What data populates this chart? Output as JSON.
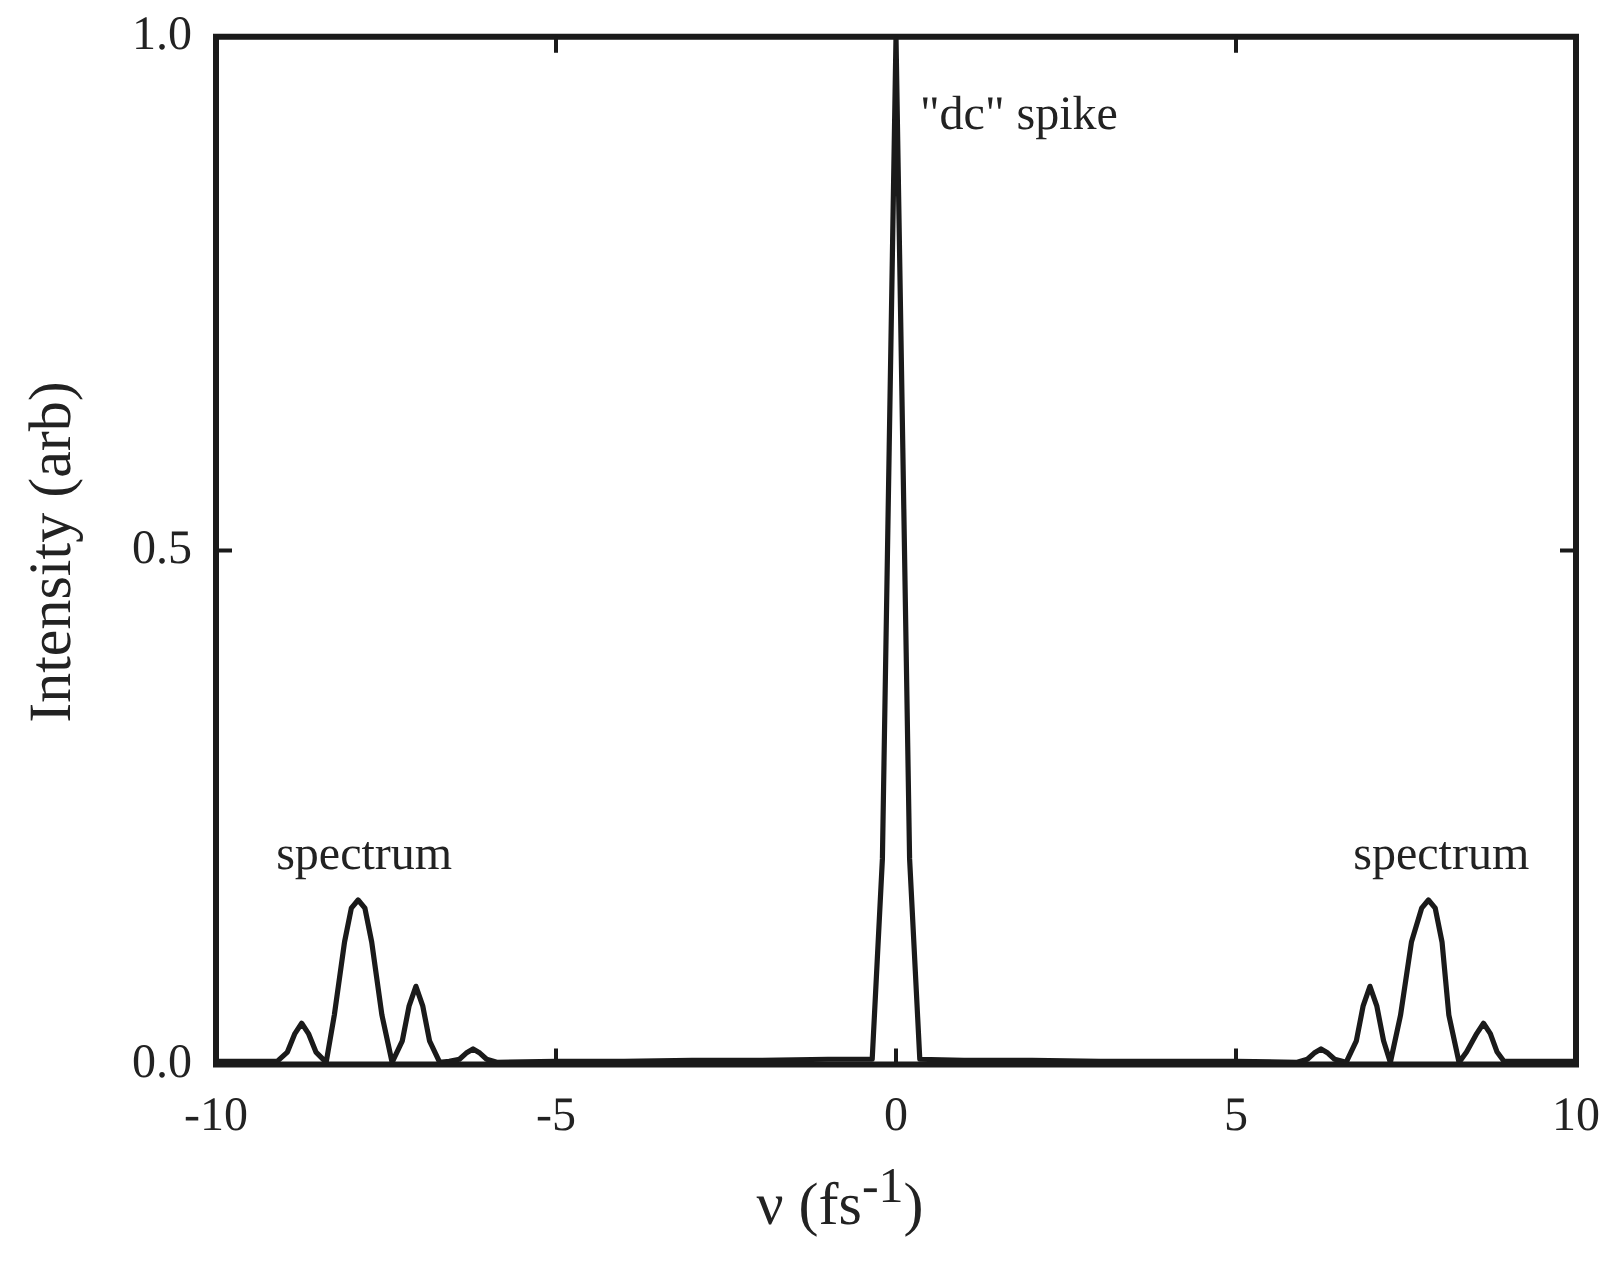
{
  "chart_data": {
    "type": "line",
    "xlabel": "ν (fs$^{-1}$)",
    "ylabel": "Intensity (arb)",
    "xlim": [
      -10,
      10
    ],
    "xticks": [
      -10,
      -5,
      0,
      5,
      10
    ],
    "ylim": [
      0,
      1
    ],
    "yticks": [
      {
        "value": 0,
        "label": "0.0"
      },
      {
        "value": 0.5,
        "label": "0.5"
      },
      {
        "value": 1,
        "label": "1.0"
      }
    ],
    "marker": "none",
    "line_style": "solid",
    "legend": false,
    "annotations": [
      {
        "text": "spectrum",
        "x": -7.91,
        "y": 0.16
      },
      {
        "text": "spectrum",
        "x": 7.93,
        "y": 0.16
      },
      {
        "text": "\"dc\" spike",
        "x": 0,
        "y": 1
      }
    ],
    "series": [
      {
        "color": "#1a1a1a",
        "x": [
          -10,
          -9.5,
          -9.1,
          -8.95,
          -8.84,
          -8.74,
          -8.64,
          -8.53,
          -8.38,
          -8.26,
          -8.11,
          -8.01,
          -7.91,
          -7.81,
          -7.71,
          -7.56,
          -7.41,
          -7.26,
          -7.16,
          -7.06,
          -6.96,
          -6.86,
          -6.71,
          -6.57,
          -6.42,
          -6.32,
          -6.22,
          -6.12,
          -6.02,
          -5.87,
          -5,
          -4,
          -3,
          -2,
          -1,
          -0.35,
          -0.2,
          -0.1,
          0,
          0.1,
          0.2,
          0.35,
          1,
          2,
          3,
          4,
          5,
          5.9,
          6.05,
          6.15,
          6.25,
          6.35,
          6.45,
          6.62,
          6.77,
          6.87,
          6.97,
          7.07,
          7.17,
          7.27,
          7.42,
          7.58,
          7.73,
          7.83,
          7.93,
          8.03,
          8.13,
          8.28,
          8.39,
          8.54,
          8.64,
          8.74,
          8.84,
          8.94,
          9.09,
          9.5,
          10
        ],
        "values": [
          0.003,
          0.003,
          0.003,
          0.012,
          0.03,
          0.04,
          0.03,
          0.012,
          0.002,
          0.048,
          0.119,
          0.152,
          0.16,
          0.152,
          0.119,
          0.048,
          0.002,
          0.023,
          0.057,
          0.076,
          0.057,
          0.023,
          0.002,
          0.003,
          0.005,
          0.011,
          0.015,
          0.011,
          0.005,
          0.002,
          0.003,
          0.003,
          0.004,
          0.004,
          0.005,
          0.005,
          0.2,
          0.6,
          1,
          0.6,
          0.2,
          0.005,
          0.004,
          0.004,
          0.003,
          0.003,
          0.003,
          0.002,
          0.005,
          0.011,
          0.015,
          0.011,
          0.005,
          0.002,
          0.023,
          0.057,
          0.076,
          0.057,
          0.023,
          0.002,
          0.048,
          0.119,
          0.152,
          0.16,
          0.152,
          0.119,
          0.048,
          0.002,
          0.012,
          0.03,
          0.04,
          0.03,
          0.012,
          0.003,
          0.003,
          0.003,
          0.003
        ]
      }
    ]
  }
}
